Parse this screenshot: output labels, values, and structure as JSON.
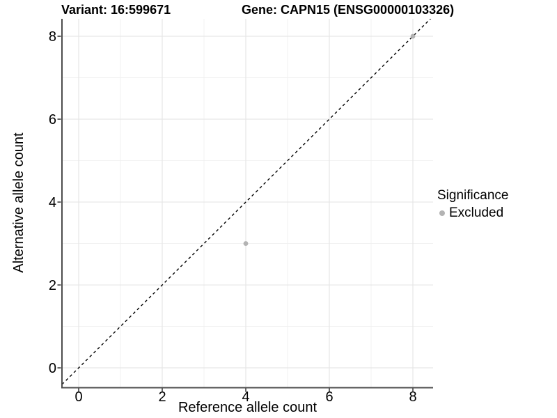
{
  "title": {
    "variant": "Variant: 16:599671",
    "gene": "Gene: CAPN15 (ENSG00000103326)"
  },
  "axes": {
    "x_label": "Reference allele count",
    "y_label": "Alternative allele count"
  },
  "legend": {
    "title": "Significance",
    "items": [
      {
        "label": "Excluded",
        "color": "#b3b3b3"
      }
    ]
  },
  "chart_data": {
    "type": "scatter",
    "title": "Variant: 16:599671   Gene: CAPN15 (ENSG00000103326)",
    "xlabel": "Reference allele count",
    "ylabel": "Alternative allele count",
    "xlim": [
      -0.4,
      8.483
    ],
    "ylim": [
      -0.47,
      8.421
    ],
    "x_ticks": [
      0,
      2,
      4,
      6,
      8
    ],
    "y_ticks": [
      0,
      2,
      4,
      6,
      8
    ],
    "x_minor": [
      1,
      3,
      5,
      7
    ],
    "y_minor": [
      1,
      3,
      5,
      7
    ],
    "grid": true,
    "legend_position": "right",
    "series": [
      {
        "name": "Excluded",
        "color": "#b3b3b3",
        "points": [
          {
            "x": 4,
            "y": 3
          },
          {
            "x": 8,
            "y": 8
          }
        ]
      }
    ],
    "reference_line": {
      "style": "dashed",
      "slope": 1,
      "intercept": 0,
      "color": "#000000"
    },
    "colors": {
      "grid_major": "#e6e6e6",
      "grid_minor": "#f0f0f0",
      "axis_line": "#4d4d4d",
      "tick_mark": "#333333",
      "tick_label": "#000000",
      "point": "#b3b3b3"
    }
  }
}
